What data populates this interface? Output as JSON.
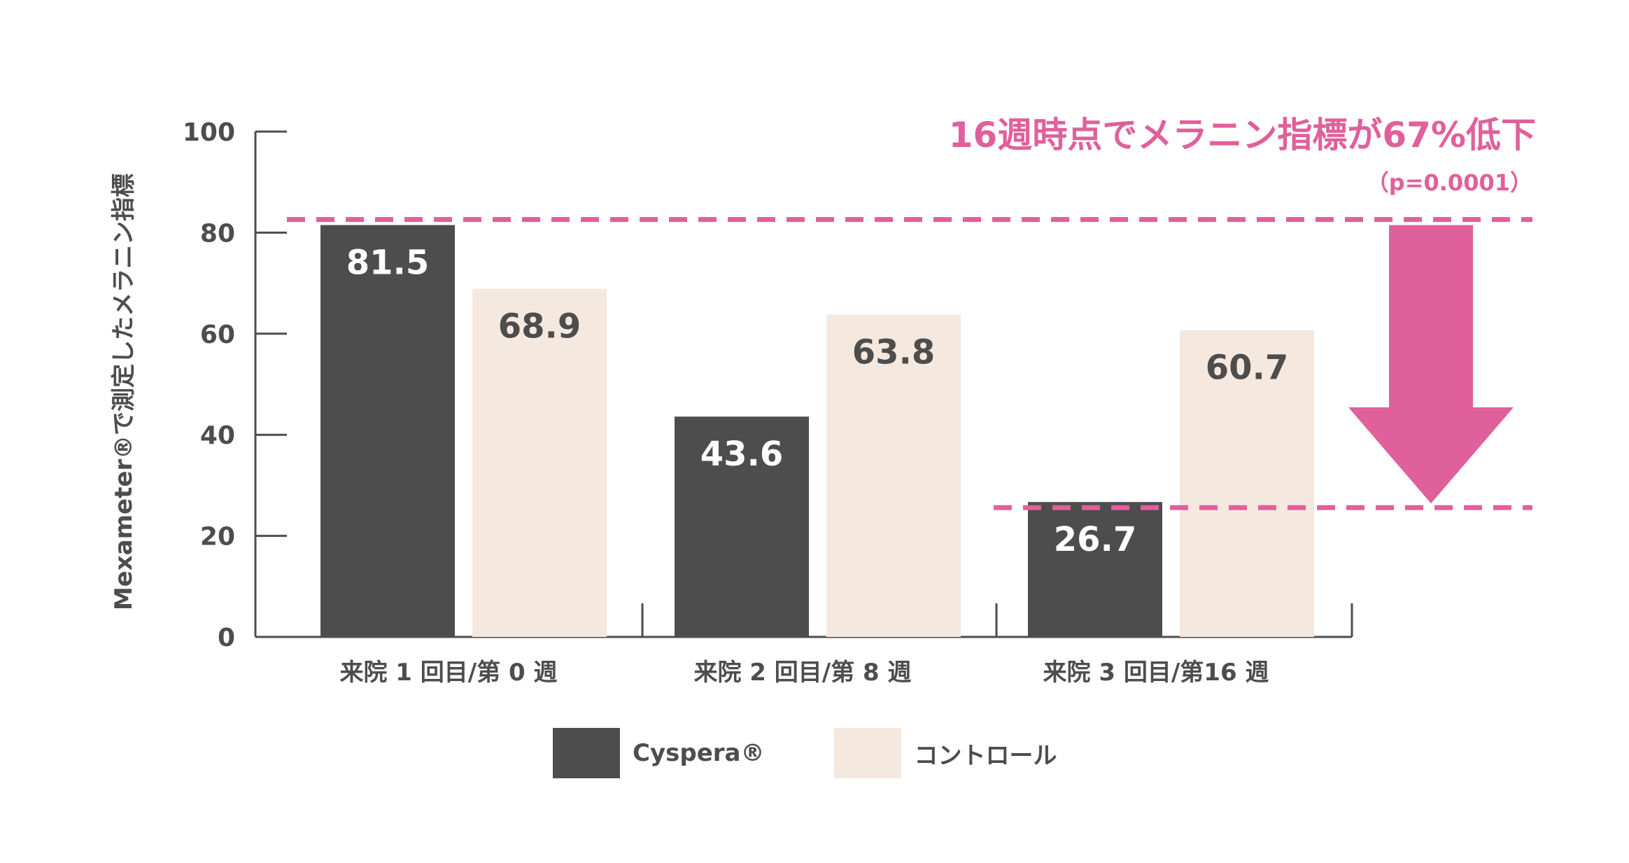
{
  "chart_data": {
    "type": "bar",
    "ylabel": "Mexameter®で測定したメラニン指標",
    "ylim": [
      0,
      100
    ],
    "yticks": [
      0,
      20,
      40,
      60,
      80,
      100
    ],
    "categories": [
      "来院 1 回目/第 0 週",
      "来院 2 回目/第 8 週",
      "来院 3 回目/第16 週"
    ],
    "series": [
      {
        "name": "Cyspera®",
        "color": "#4d4d4d",
        "label_color": "#ffffff",
        "values": [
          81.5,
          43.6,
          26.7
        ]
      },
      {
        "name": "コントロール",
        "color": "#f5e8df",
        "label_color": "#4d4d4d",
        "values": [
          68.9,
          63.8,
          60.7
        ]
      }
    ],
    "annotation": {
      "text": "16週時点でメラニン指標が67%低下",
      "subtext": "（p=0.0001）",
      "color": "#e0609b",
      "from_value": 81.5,
      "to_value": 26.7
    },
    "legend_position": "bottom",
    "grid": false
  }
}
